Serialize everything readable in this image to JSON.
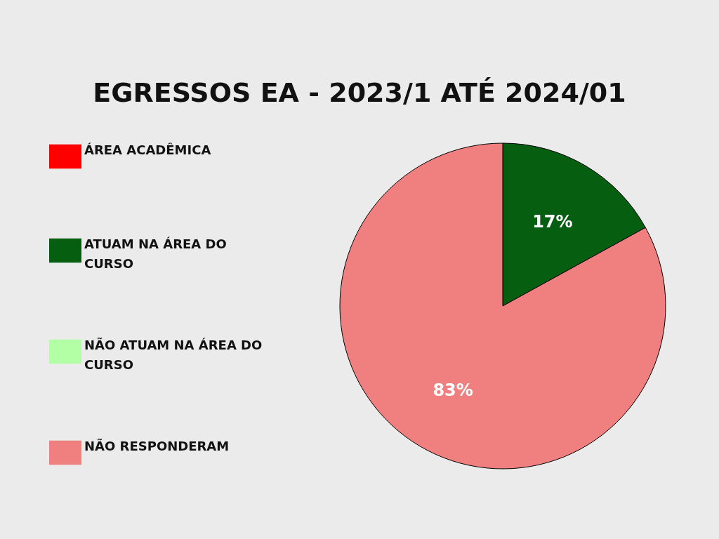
{
  "chart_data": {
    "type": "pie",
    "title": "EGRESSOS EA - 2023/1 ATÉ  2024/01",
    "categories": [
      "ÁREA ACADÊMICA",
      "ATUAM NA ÁREA DO CURSO",
      "NÃO ATUAM NA ÁREA DO CURSO",
      "NÃO RESPONDERAM"
    ],
    "values": [
      0,
      17,
      0,
      83
    ],
    "colors": [
      "#ff0000",
      "#065e10",
      "#b3ffa6",
      "#f08080"
    ],
    "value_labels": [
      null,
      "17%",
      null,
      "83%"
    ],
    "legend": "left"
  }
}
